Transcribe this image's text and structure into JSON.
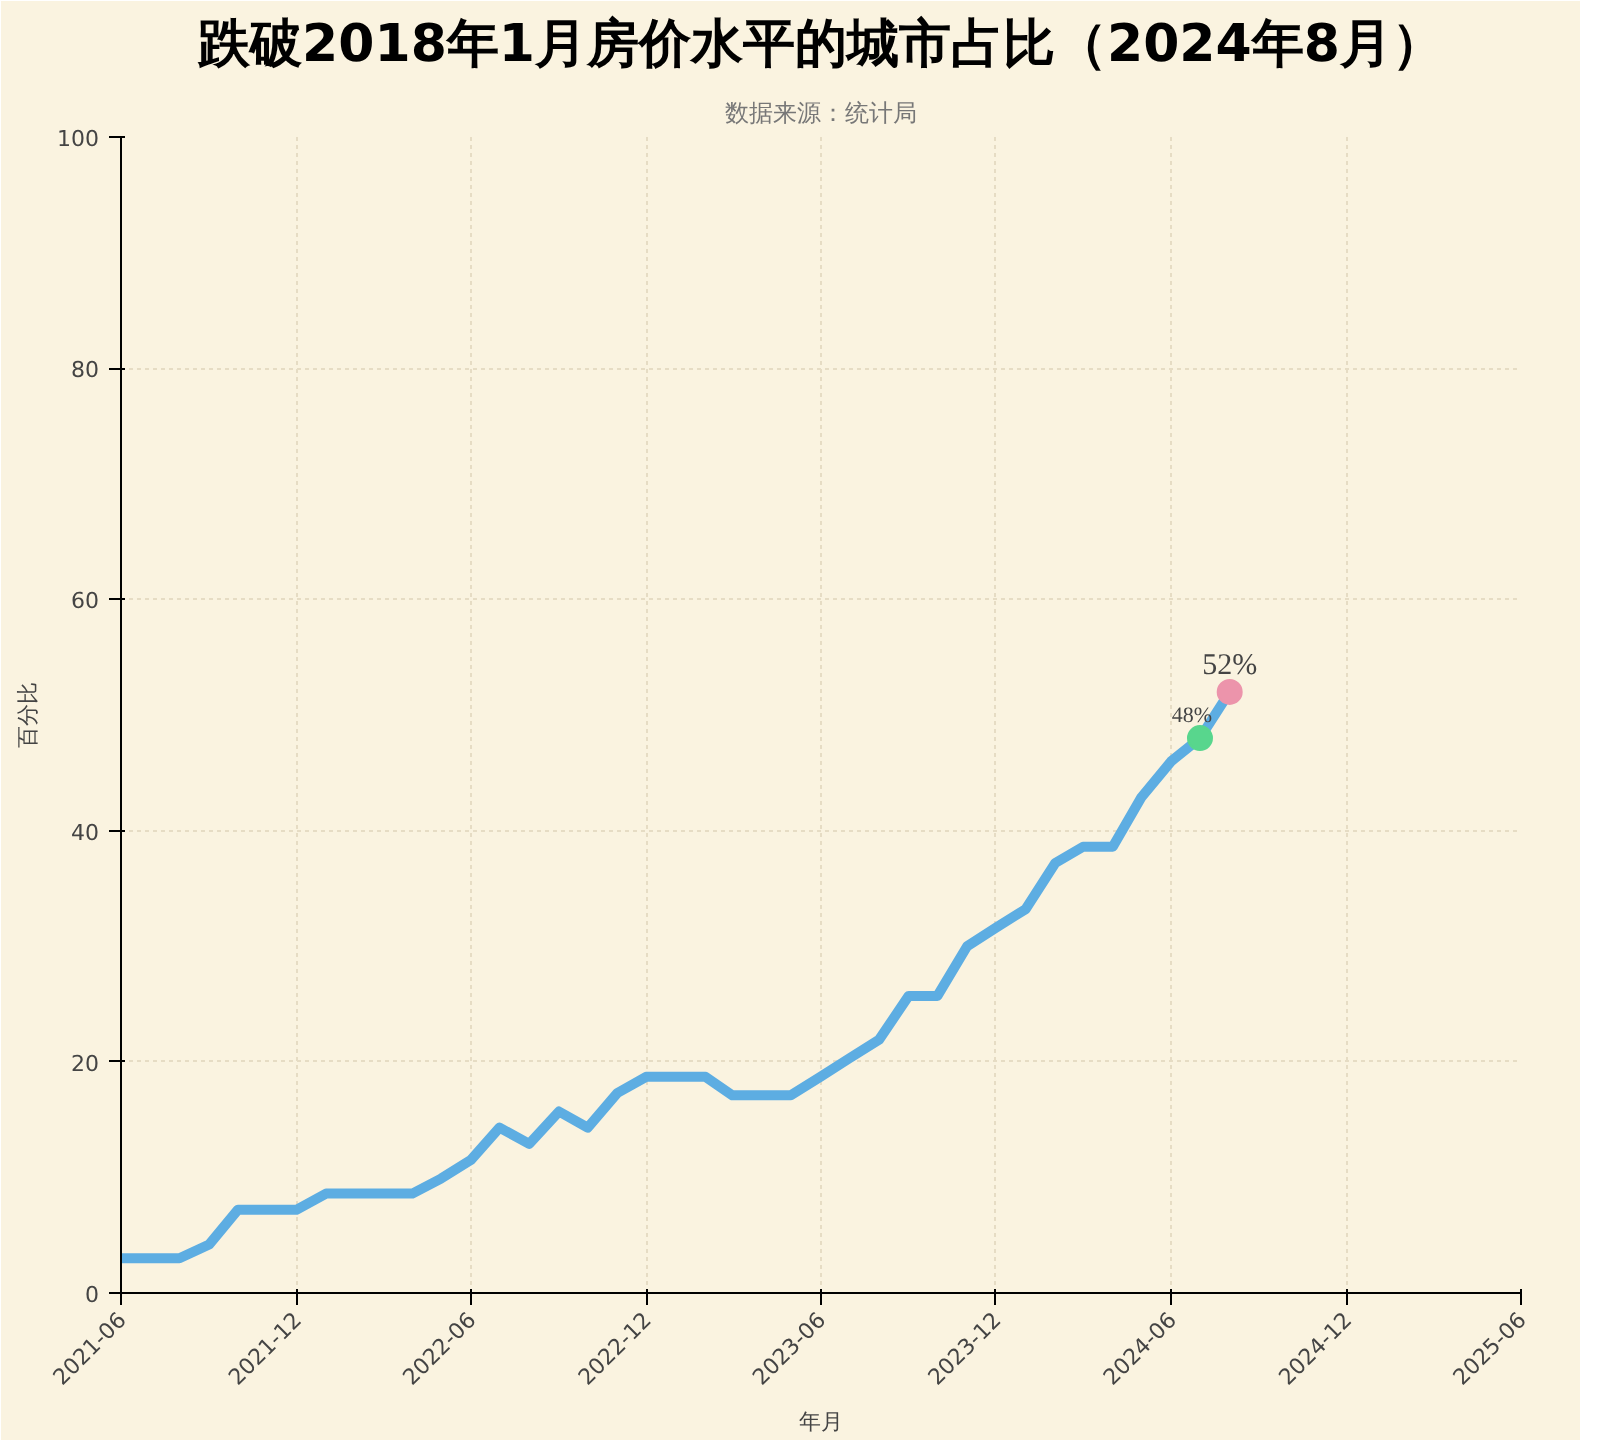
{
  "chart_data": {
    "type": "line",
    "title": "跌破2018年1月房价水平的城市占比（2024年8月）",
    "subtitle": "数据来源：统计局",
    "xlabel": "年月",
    "ylabel": "百分比",
    "x": [
      "2021-06",
      "2021-07",
      "2021-08",
      "2021-09",
      "2021-10",
      "2021-11",
      "2021-12",
      "2022-01",
      "2022-02",
      "2022-03",
      "2022-04",
      "2022-05",
      "2022-06",
      "2022-07",
      "2022-08",
      "2022-09",
      "2022-10",
      "2022-11",
      "2022-12",
      "2023-01",
      "2023-02",
      "2023-03",
      "2023-04",
      "2023-05",
      "2023-06",
      "2023-07",
      "2023-08",
      "2023-09",
      "2023-10",
      "2023-11",
      "2023-12",
      "2024-01",
      "2024-02",
      "2024-03",
      "2024-04",
      "2024-05",
      "2024-06",
      "2024-07",
      "2024-08"
    ],
    "series": [
      {
        "color": "#5dade2",
        "values": [
          3.0,
          3.0,
          3.0,
          4.2,
          7.2,
          7.2,
          7.2,
          8.6,
          8.6,
          8.6,
          8.6,
          9.9,
          11.5,
          14.3,
          12.9,
          15.7,
          14.3,
          17.3,
          18.7,
          18.7,
          18.7,
          17.1,
          17.1,
          17.1,
          18.7,
          20.3,
          21.9,
          25.7,
          25.7,
          30.0,
          31.6,
          33.2,
          37.2,
          38.6,
          38.6,
          42.9,
          46.0,
          48,
          52
        ]
      },
      {
        "type": "scatter",
        "marker": "circle",
        "color": "#58d68d",
        "x": [
          "2024-07"
        ],
        "values": [
          48
        ],
        "value_labels": [
          "48%"
        ]
      },
      {
        "type": "scatter",
        "marker": "circle",
        "color": "#ec94ab",
        "x": [
          "2024-08"
        ],
        "values": [
          52
        ],
        "value_labels": [
          "52%"
        ]
      }
    ],
    "xlim": [
      "2021-06",
      "2025-06"
    ],
    "xticks": [
      "2021-06",
      "2021-12",
      "2022-06",
      "2022-12",
      "2023-06",
      "2023-12",
      "2024-06",
      "2024-12",
      "2025-06"
    ],
    "ylim": [
      0,
      100
    ],
    "yticks": [
      0,
      20,
      40,
      60,
      80,
      100
    ],
    "grid": true,
    "line_style": "solid"
  }
}
